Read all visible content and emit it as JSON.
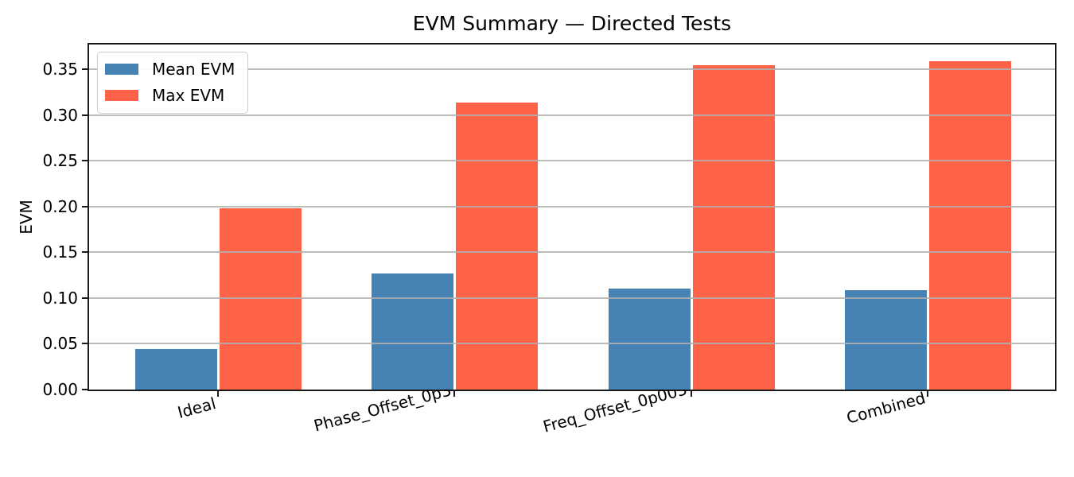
{
  "chart_data": {
    "type": "bar",
    "title": "EVM Summary — Directed Tests",
    "xlabel": "",
    "ylabel": "EVM",
    "categories": [
      "Ideal",
      "Phase_Offset_0p3",
      "Freq_Offset_0p005",
      "Combined"
    ],
    "series": [
      {
        "name": "Mean EVM",
        "color": "#4682B4",
        "values": [
          0.044,
          0.127,
          0.11,
          0.109
        ]
      },
      {
        "name": "Max EVM",
        "color": "#FF6347",
        "values": [
          0.198,
          0.314,
          0.354,
          0.359
        ]
      }
    ],
    "ylim": [
      0,
      0.377
    ],
    "yticks": [
      0.0,
      0.05,
      0.1,
      0.15,
      0.2,
      0.25,
      0.3,
      0.35
    ],
    "ytick_labels": [
      "0.00",
      "0.05",
      "0.10",
      "0.15",
      "0.20",
      "0.25",
      "0.30",
      "0.35"
    ],
    "bar_width_units": 0.35,
    "xtick_rotation_deg": 15,
    "grid": "horizontal-on-top",
    "grid_color": "#b0b0b0",
    "spine_color": "#1a1a1a",
    "legend_position": "upper-left",
    "legend_entries": [
      "Mean EVM",
      "Max EVM"
    ]
  }
}
